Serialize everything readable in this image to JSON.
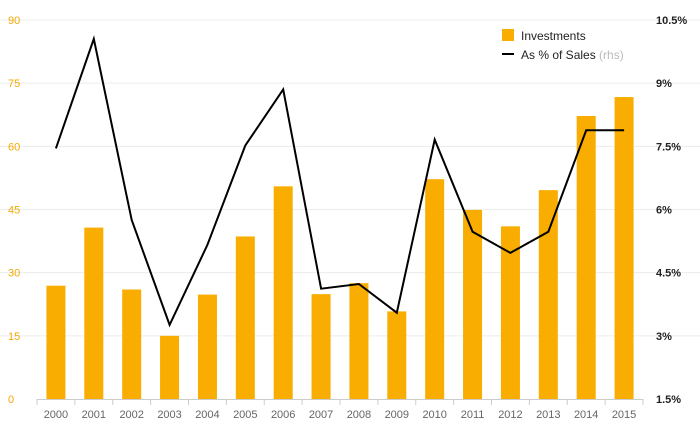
{
  "colors": {
    "bar": "#f8ad00",
    "line": "#000000",
    "grid": "#ececec",
    "left_ticks": "#f5a800",
    "right_ticks": "#222222",
    "x_ticks": "#666666"
  },
  "legend": {
    "bars_label": "Investments",
    "line_label": "As % of Sales",
    "line_suffix": "(rhs)",
    "placement": "top-right"
  },
  "chart_data": {
    "type": "bar+line",
    "title": "",
    "xlabel": "",
    "ylabel": "",
    "categories": [
      "2000",
      "2001",
      "2002",
      "2003",
      "2004",
      "2005",
      "2006",
      "2007",
      "2008",
      "2009",
      "2010",
      "2011",
      "2012",
      "2013",
      "2014",
      "2015"
    ],
    "series": [
      {
        "name": "Investments",
        "type": "bar",
        "axis": "left",
        "values": [
          26.9,
          40.7,
          26.0,
          15.0,
          24.8,
          38.6,
          50.5,
          24.9,
          27.5,
          20.8,
          52.2,
          44.9,
          41.0,
          49.6,
          67.2,
          71.7
        ]
      },
      {
        "name": "As % of Sales",
        "type": "line",
        "axis": "right",
        "values": [
          7.45,
          10.05,
          5.75,
          3.26,
          5.16,
          7.52,
          8.85,
          4.12,
          4.23,
          3.55,
          7.66,
          5.47,
          4.97,
          5.47,
          7.88,
          7.88
        ]
      }
    ],
    "y_left": {
      "ylim": [
        0,
        90
      ],
      "ticks": [
        0,
        15,
        30,
        45,
        60,
        75,
        90
      ],
      "tick_labels": [
        "0",
        "15",
        "30",
        "45",
        "60",
        "75",
        "90"
      ]
    },
    "y_right": {
      "ylim": [
        1.5,
        10.5
      ],
      "ticks": [
        1.5,
        3,
        4.5,
        6,
        7.5,
        9,
        10.5
      ],
      "tick_labels": [
        "1.5%",
        "3%",
        "4.5%",
        "6%",
        "7.5%",
        "9%",
        "10.5%"
      ]
    },
    "grid": true
  }
}
